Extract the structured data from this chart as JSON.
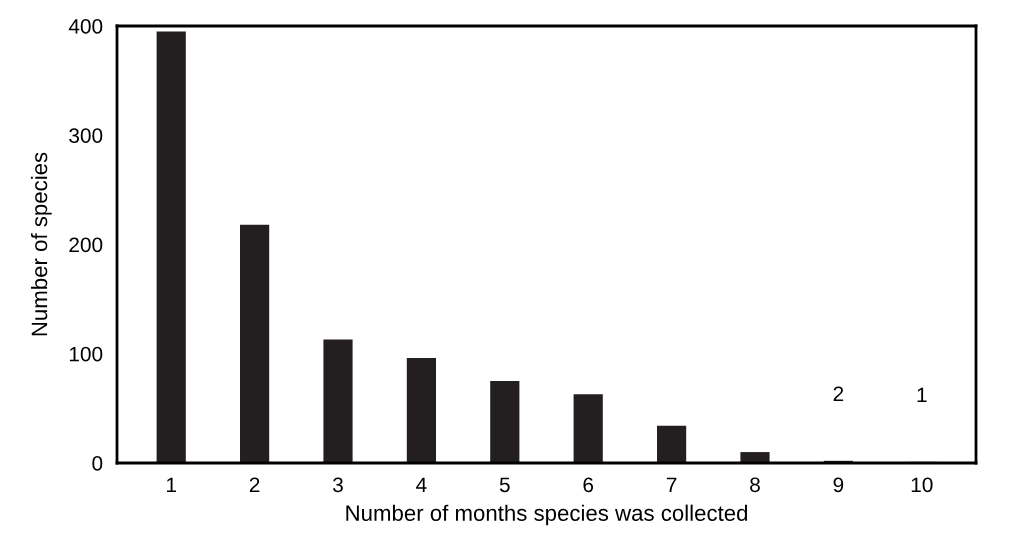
{
  "chart_data": {
    "type": "bar",
    "xlabel": "Number of months species was collected",
    "ylabel": "Number of species",
    "categories": [
      "1",
      "2",
      "3",
      "4",
      "5",
      "6",
      "7",
      "8",
      "9",
      "10"
    ],
    "values": [
      395,
      218,
      113,
      96,
      75,
      63,
      34,
      10,
      2,
      1
    ],
    "value_labels": [
      null,
      null,
      null,
      null,
      null,
      null,
      null,
      null,
      "2",
      "1"
    ],
    "color": "#231f20",
    "ylim": [
      0,
      400
    ],
    "yticks": [
      0,
      100,
      200,
      300,
      400
    ],
    "grid": false
  }
}
